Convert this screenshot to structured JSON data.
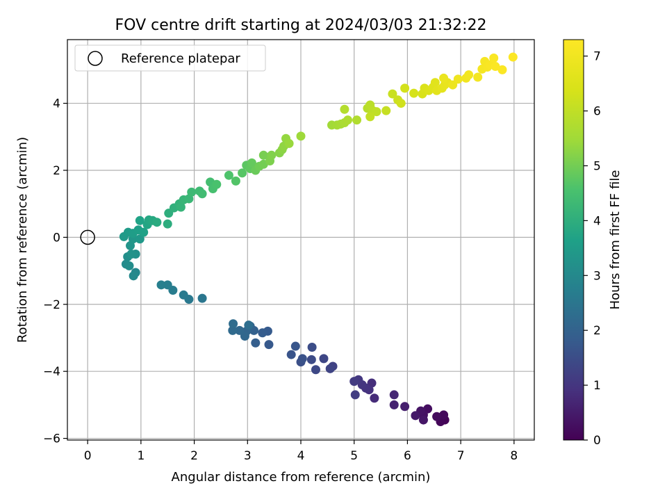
{
  "chart_data": {
    "type": "scatter",
    "title": "FOV centre drift starting at 2024/03/03 21:32:22",
    "xlabel": "Angular distance from reference (arcmin)",
    "ylabel": "Rotation from reference (arcmin)",
    "xlim": [
      -0.38,
      8.38
    ],
    "ylim": [
      -6.05,
      5.9
    ],
    "xticks": [
      0,
      1,
      2,
      3,
      4,
      5,
      6,
      7,
      8
    ],
    "yticks": [
      -6,
      -4,
      -2,
      0,
      2,
      4
    ],
    "grid": true,
    "legend": {
      "position": "top-left",
      "entries": [
        "Reference platepar"
      ]
    },
    "reference_point": {
      "x": 0,
      "y": 0
    },
    "colorbar": {
      "label": "Hours from first FF file",
      "range": [
        0,
        7.3
      ],
      "ticks": [
        0,
        1,
        2,
        3,
        4,
        5,
        6,
        7
      ],
      "colormap": "viridis"
    },
    "points": [
      {
        "x": 6.7,
        "y": -5.45,
        "t": 0.05
      },
      {
        "x": 6.62,
        "y": -5.5,
        "t": 0.1
      },
      {
        "x": 6.68,
        "y": -5.3,
        "t": 0.15
      },
      {
        "x": 6.55,
        "y": -5.35,
        "t": 0.2
      },
      {
        "x": 6.38,
        "y": -5.12,
        "t": 0.25
      },
      {
        "x": 6.3,
        "y": -5.3,
        "t": 0.3
      },
      {
        "x": 6.25,
        "y": -5.18,
        "t": 0.35
      },
      {
        "x": 6.3,
        "y": -5.45,
        "t": 0.4
      },
      {
        "x": 6.15,
        "y": -5.32,
        "t": 0.45
      },
      {
        "x": 5.95,
        "y": -5.05,
        "t": 0.55
      },
      {
        "x": 5.75,
        "y": -5.0,
        "t": 0.6
      },
      {
        "x": 5.75,
        "y": -4.7,
        "t": 0.7
      },
      {
        "x": 5.38,
        "y": -4.8,
        "t": 0.8
      },
      {
        "x": 5.33,
        "y": -4.35,
        "t": 0.85
      },
      {
        "x": 5.28,
        "y": -4.55,
        "t": 0.9
      },
      {
        "x": 5.22,
        "y": -4.5,
        "t": 0.95
      },
      {
        "x": 5.15,
        "y": -4.4,
        "t": 1.0
      },
      {
        "x": 5.08,
        "y": -4.25,
        "t": 1.05
      },
      {
        "x": 5.0,
        "y": -4.3,
        "t": 1.1
      },
      {
        "x": 5.02,
        "y": -4.7,
        "t": 1.15
      },
      {
        "x": 4.6,
        "y": -3.85,
        "t": 1.25
      },
      {
        "x": 4.55,
        "y": -3.92,
        "t": 1.3
      },
      {
        "x": 4.43,
        "y": -3.62,
        "t": 1.35
      },
      {
        "x": 4.28,
        "y": -3.95,
        "t": 1.4
      },
      {
        "x": 4.2,
        "y": -3.65,
        "t": 1.45
      },
      {
        "x": 4.21,
        "y": -3.28,
        "t": 1.5
      },
      {
        "x": 4.0,
        "y": -3.72,
        "t": 1.55
      },
      {
        "x": 4.03,
        "y": -3.62,
        "t": 1.6
      },
      {
        "x": 3.82,
        "y": -3.5,
        "t": 1.65
      },
      {
        "x": 3.9,
        "y": -3.25,
        "t": 1.7
      },
      {
        "x": 3.4,
        "y": -3.2,
        "t": 1.75
      },
      {
        "x": 3.38,
        "y": -2.8,
        "t": 1.8
      },
      {
        "x": 3.28,
        "y": -2.85,
        "t": 1.85
      },
      {
        "x": 3.15,
        "y": -3.15,
        "t": 1.9
      },
      {
        "x": 3.12,
        "y": -2.78,
        "t": 1.95
      },
      {
        "x": 3.05,
        "y": -2.65,
        "t": 2.0
      },
      {
        "x": 2.98,
        "y": -2.8,
        "t": 2.05
      },
      {
        "x": 2.95,
        "y": -2.95,
        "t": 2.1
      },
      {
        "x": 2.85,
        "y": -2.78,
        "t": 2.15
      },
      {
        "x": 2.72,
        "y": -2.78,
        "t": 2.2
      },
      {
        "x": 2.73,
        "y": -2.58,
        "t": 2.25
      },
      {
        "x": 3.02,
        "y": -2.62,
        "t": 2.3
      },
      {
        "x": 2.15,
        "y": -1.82,
        "t": 2.5
      },
      {
        "x": 1.9,
        "y": -1.85,
        "t": 2.55
      },
      {
        "x": 1.8,
        "y": -1.72,
        "t": 2.6
      },
      {
        "x": 1.6,
        "y": -1.58,
        "t": 2.65
      },
      {
        "x": 1.5,
        "y": -1.42,
        "t": 2.7
      },
      {
        "x": 1.38,
        "y": -1.42,
        "t": 2.75
      },
      {
        "x": 0.9,
        "y": -1.05,
        "t": 2.95
      },
      {
        "x": 0.86,
        "y": -1.15,
        "t": 3.0
      },
      {
        "x": 0.72,
        "y": -0.8,
        "t": 3.05
      },
      {
        "x": 0.78,
        "y": -0.85,
        "t": 3.1
      },
      {
        "x": 0.75,
        "y": -0.58,
        "t": 3.15
      },
      {
        "x": 0.9,
        "y": -0.5,
        "t": 3.2
      },
      {
        "x": 0.82,
        "y": -0.5,
        "t": 3.25
      },
      {
        "x": 0.8,
        "y": -0.25,
        "t": 3.3
      },
      {
        "x": 0.85,
        "y": -0.05,
        "t": 3.35
      },
      {
        "x": 0.98,
        "y": -0.05,
        "t": 3.4
      },
      {
        "x": 0.68,
        "y": 0.02,
        "t": 3.45
      },
      {
        "x": 0.76,
        "y": 0.15,
        "t": 3.5
      },
      {
        "x": 0.85,
        "y": 0.12,
        "t": 3.55
      },
      {
        "x": 0.95,
        "y": 0.22,
        "t": 3.6
      },
      {
        "x": 1.05,
        "y": 0.15,
        "t": 3.65
      },
      {
        "x": 0.98,
        "y": 0.5,
        "t": 3.7
      },
      {
        "x": 1.12,
        "y": 0.38,
        "t": 3.75
      },
      {
        "x": 1.15,
        "y": 0.52,
        "t": 3.8
      },
      {
        "x": 1.22,
        "y": 0.5,
        "t": 3.85
      },
      {
        "x": 1.3,
        "y": 0.45,
        "t": 3.9
      },
      {
        "x": 1.5,
        "y": 0.4,
        "t": 3.95
      },
      {
        "x": 1.52,
        "y": 0.72,
        "t": 4.0
      },
      {
        "x": 1.62,
        "y": 0.88,
        "t": 4.05
      },
      {
        "x": 1.72,
        "y": 1.0,
        "t": 4.1
      },
      {
        "x": 1.75,
        "y": 0.9,
        "t": 4.15
      },
      {
        "x": 1.8,
        "y": 1.12,
        "t": 4.2
      },
      {
        "x": 1.9,
        "y": 1.15,
        "t": 4.25
      },
      {
        "x": 1.95,
        "y": 1.35,
        "t": 4.3
      },
      {
        "x": 2.1,
        "y": 1.38,
        "t": 4.35
      },
      {
        "x": 2.15,
        "y": 1.3,
        "t": 4.4
      },
      {
        "x": 2.3,
        "y": 1.65,
        "t": 4.45
      },
      {
        "x": 2.35,
        "y": 1.45,
        "t": 4.5
      },
      {
        "x": 2.42,
        "y": 1.58,
        "t": 4.55
      },
      {
        "x": 2.65,
        "y": 1.85,
        "t": 4.6
      },
      {
        "x": 2.78,
        "y": 1.68,
        "t": 4.65
      },
      {
        "x": 2.9,
        "y": 1.92,
        "t": 4.7
      },
      {
        "x": 2.98,
        "y": 2.15,
        "t": 4.75
      },
      {
        "x": 3.05,
        "y": 2.05,
        "t": 4.8
      },
      {
        "x": 3.08,
        "y": 2.22,
        "t": 4.85
      },
      {
        "x": 3.15,
        "y": 2.0,
        "t": 4.9
      },
      {
        "x": 3.22,
        "y": 2.12,
        "t": 4.95
      },
      {
        "x": 3.3,
        "y": 2.18,
        "t": 5.0
      },
      {
        "x": 3.3,
        "y": 2.45,
        "t": 5.05
      },
      {
        "x": 3.42,
        "y": 2.28,
        "t": 5.1
      },
      {
        "x": 3.45,
        "y": 2.45,
        "t": 5.15
      },
      {
        "x": 3.6,
        "y": 2.52,
        "t": 5.2
      },
      {
        "x": 3.65,
        "y": 2.62,
        "t": 5.25
      },
      {
        "x": 3.68,
        "y": 2.72,
        "t": 5.3
      },
      {
        "x": 3.72,
        "y": 2.95,
        "t": 5.35
      },
      {
        "x": 3.78,
        "y": 2.8,
        "t": 5.4
      },
      {
        "x": 4.0,
        "y": 3.02,
        "t": 5.45
      },
      {
        "x": 4.58,
        "y": 3.35,
        "t": 5.5
      },
      {
        "x": 4.68,
        "y": 3.35,
        "t": 5.55
      },
      {
        "x": 4.75,
        "y": 3.38,
        "t": 5.6
      },
      {
        "x": 4.82,
        "y": 3.42,
        "t": 5.65
      },
      {
        "x": 4.88,
        "y": 3.5,
        "t": 5.7
      },
      {
        "x": 5.05,
        "y": 3.5,
        "t": 5.75
      },
      {
        "x": 4.82,
        "y": 3.82,
        "t": 5.8
      },
      {
        "x": 5.25,
        "y": 3.85,
        "t": 5.85
      },
      {
        "x": 5.3,
        "y": 3.95,
        "t": 5.9
      },
      {
        "x": 5.35,
        "y": 3.78,
        "t": 5.95
      },
      {
        "x": 5.42,
        "y": 3.75,
        "t": 6.0
      },
      {
        "x": 5.3,
        "y": 3.6,
        "t": 6.05
      },
      {
        "x": 5.6,
        "y": 3.78,
        "t": 6.1
      },
      {
        "x": 5.72,
        "y": 4.28,
        "t": 6.15
      },
      {
        "x": 5.82,
        "y": 4.1,
        "t": 6.2
      },
      {
        "x": 5.88,
        "y": 4.0,
        "t": 6.25
      },
      {
        "x": 5.95,
        "y": 4.45,
        "t": 6.3
      },
      {
        "x": 6.12,
        "y": 4.3,
        "t": 6.35
      },
      {
        "x": 6.28,
        "y": 4.28,
        "t": 6.4
      },
      {
        "x": 6.32,
        "y": 4.45,
        "t": 6.45
      },
      {
        "x": 6.4,
        "y": 4.38,
        "t": 6.5
      },
      {
        "x": 6.48,
        "y": 4.48,
        "t": 6.55
      },
      {
        "x": 6.52,
        "y": 4.62,
        "t": 6.6
      },
      {
        "x": 6.55,
        "y": 4.38,
        "t": 6.65
      },
      {
        "x": 6.65,
        "y": 4.45,
        "t": 6.7
      },
      {
        "x": 6.7,
        "y": 4.55,
        "t": 6.75
      },
      {
        "x": 6.75,
        "y": 4.62,
        "t": 6.8
      },
      {
        "x": 6.68,
        "y": 4.75,
        "t": 6.85
      },
      {
        "x": 6.85,
        "y": 4.55,
        "t": 6.9
      },
      {
        "x": 6.95,
        "y": 4.72,
        "t": 6.95
      },
      {
        "x": 7.1,
        "y": 4.75,
        "t": 7.0
      },
      {
        "x": 7.15,
        "y": 4.85,
        "t": 7.03
      },
      {
        "x": 7.32,
        "y": 4.78,
        "t": 7.06
      },
      {
        "x": 7.4,
        "y": 5.02,
        "t": 7.1
      },
      {
        "x": 7.45,
        "y": 5.25,
        "t": 7.13
      },
      {
        "x": 7.5,
        "y": 5.08,
        "t": 7.16
      },
      {
        "x": 7.55,
        "y": 5.15,
        "t": 7.19
      },
      {
        "x": 7.62,
        "y": 5.35,
        "t": 7.22
      },
      {
        "x": 7.65,
        "y": 5.1,
        "t": 7.24
      },
      {
        "x": 7.78,
        "y": 5.0,
        "t": 7.26
      },
      {
        "x": 7.98,
        "y": 5.38,
        "t": 7.28
      }
    ]
  }
}
